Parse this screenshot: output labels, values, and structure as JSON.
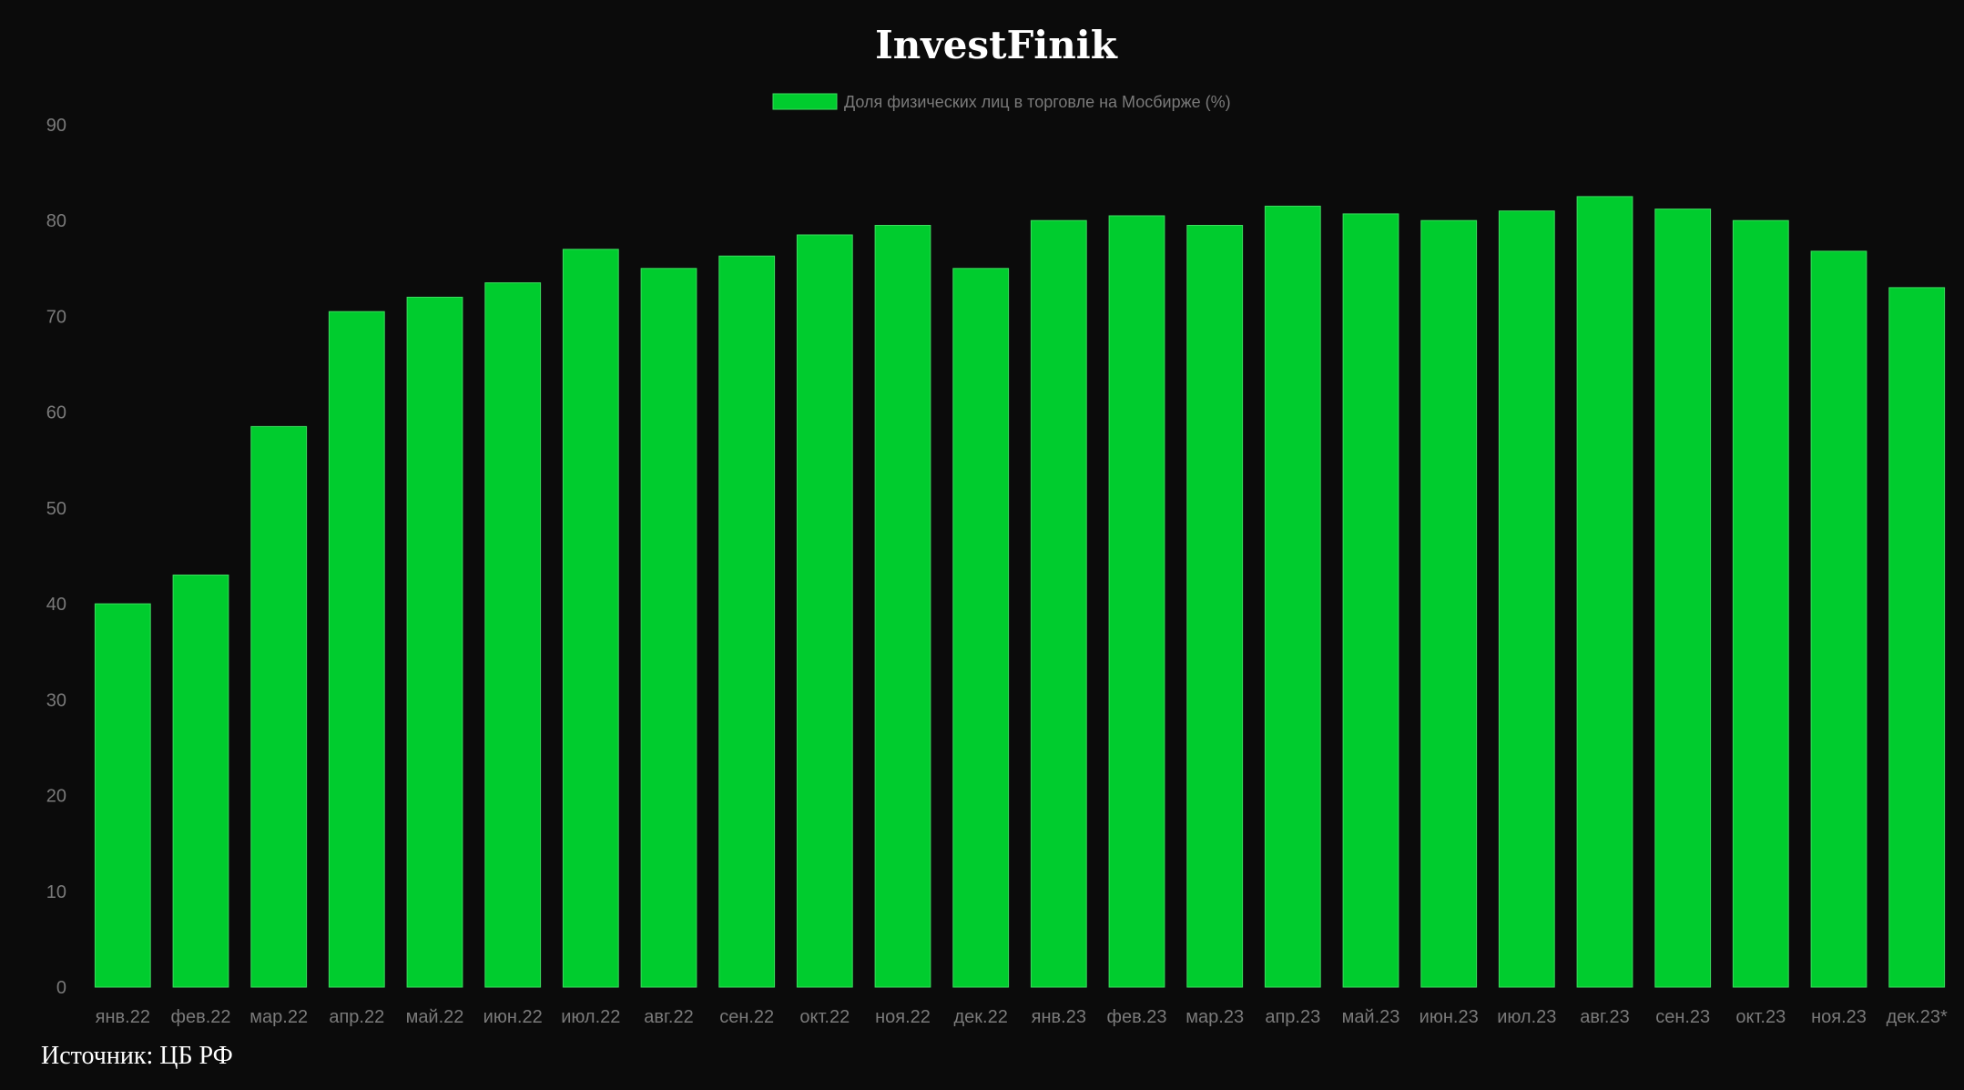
{
  "chart_data": {
    "type": "bar",
    "title": "InvestFinik",
    "xlabel": "",
    "ylabel": "",
    "ylim": [
      0,
      90
    ],
    "yticks": [
      0,
      10,
      20,
      30,
      40,
      50,
      60,
      70,
      80,
      90
    ],
    "grid": false,
    "legend_position": "top-center",
    "categories": [
      "янв.22",
      "фев.22",
      "мар.22",
      "апр.22",
      "май.22",
      "июн.22",
      "июл.22",
      "авг.22",
      "сен.22",
      "окт.22",
      "ноя.22",
      "дек.22",
      "янв.23",
      "фев.23",
      "мар.23",
      "апр.23",
      "май.23",
      "июн.23",
      "июл.23",
      "авг.23",
      "сен.23",
      "окт.23",
      "ноя.23",
      "дек.23*"
    ],
    "series": [
      {
        "name": "Доля физических лиц в торговле на Мосбирже (%)",
        "color": "#00cc2e",
        "values": [
          40,
          43,
          58.5,
          70.5,
          72,
          73.5,
          77,
          75,
          76.3,
          78.5,
          79.5,
          75,
          80,
          80.5,
          79.5,
          81.5,
          80.7,
          80,
          81,
          82.5,
          81.2,
          80,
          76.8,
          73
        ]
      }
    ]
  },
  "footer": {
    "source_text": "Источник: ЦБ РФ"
  },
  "colors": {
    "background": "#0b0b0b",
    "bar_fill": "#00cc2e",
    "bar_stroke": "#3ddc5f",
    "tick_text": "#7a7a7a",
    "title_text": "#ffffff"
  }
}
